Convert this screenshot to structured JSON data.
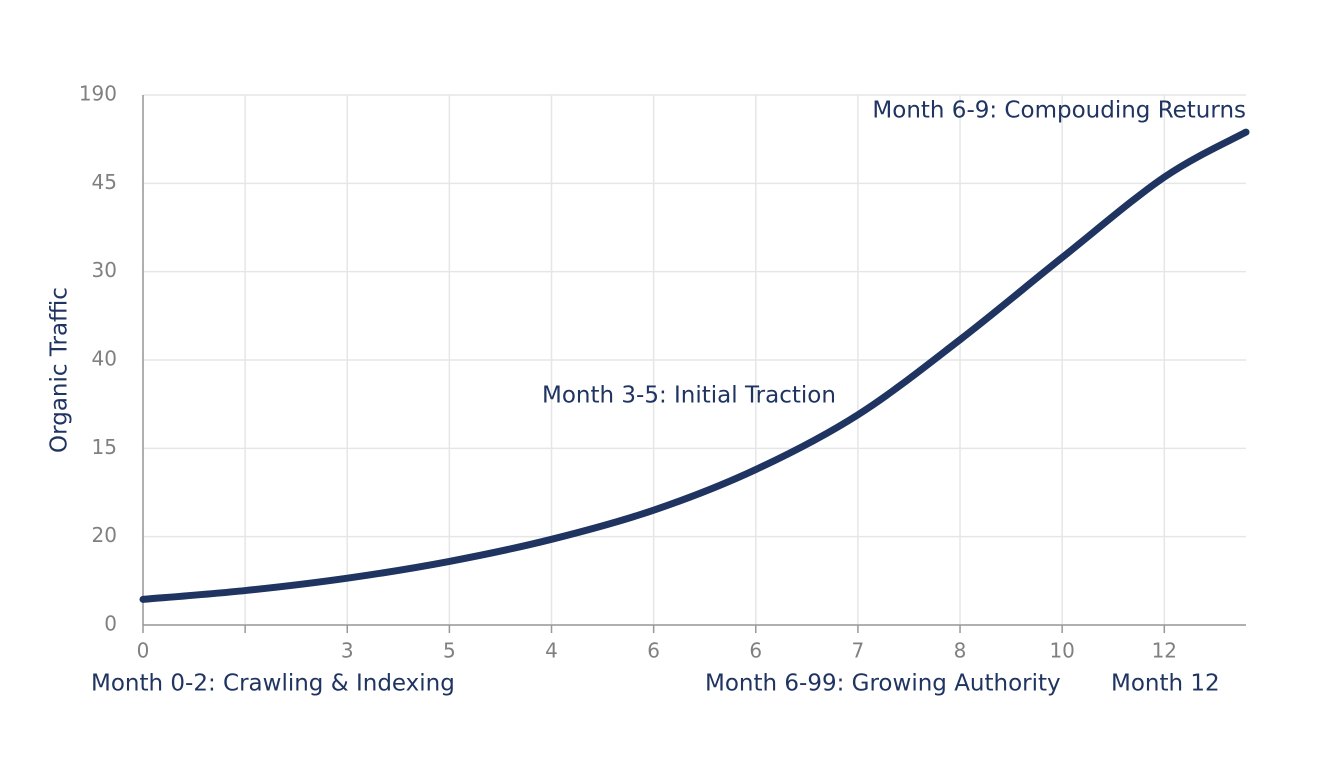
{
  "chart_data": {
    "type": "line",
    "y_label": "Organic Traffic",
    "x": [
      0,
      1,
      2,
      3,
      4,
      5,
      6,
      7,
      8,
      9,
      10,
      10.8
    ],
    "values": [
      2.9,
      3.9,
      5.3,
      7.2,
      9.7,
      13.0,
      17.6,
      23.8,
      32.3,
      41.6,
      50.7,
      55.8
    ],
    "color": "#1f3461",
    "xlim": [
      0,
      10.8
    ],
    "xticks": [
      0,
      {
        "value": 1,
        "label": null
      },
      {
        "value": 2,
        "label": "3"
      },
      {
        "value": 3,
        "label": "5"
      },
      {
        "value": 4,
        "label": "4"
      },
      {
        "value": 5,
        "label": "6"
      },
      {
        "value": 6,
        "label": "6"
      },
      {
        "value": 7,
        "label": "7"
      },
      {
        "value": 8,
        "label": "8"
      },
      {
        "value": 9,
        "label": "10"
      },
      {
        "value": 10,
        "label": "12"
      }
    ],
    "ylim": [
      0,
      60
    ],
    "yticks": [
      0,
      {
        "value": 10,
        "label": "20"
      },
      {
        "value": 20,
        "label": "15"
      },
      {
        "value": 30,
        "label": "40"
      },
      {
        "value": 40,
        "label": "30"
      },
      {
        "value": 50,
        "label": "45"
      },
      {
        "value": 60,
        "label": "190"
      }
    ],
    "grid": true,
    "annotations": [
      "Month 6-9: Compouding Returns",
      "Month 3-5: Initial Traction",
      "Month 0-2: Crawling & Indexing",
      "Month 6-99: Growing Authority",
      "Month 12"
    ]
  }
}
